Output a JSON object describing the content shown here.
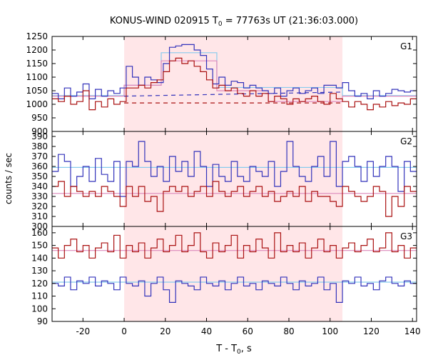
{
  "chart_data": {
    "type": "line",
    "title_main": "KONUS-WIND 020915 T",
    "title_sub": "0",
    "title_rest": " = 77763s UT (21:36:03.000)",
    "xlabel_main": "T - T",
    "xlabel_sub": "0",
    "xlabel_rest": ", s",
    "ylabel": "counts / sec",
    "xlim": [
      -35,
      142
    ],
    "xticks": [
      -20,
      0,
      20,
      40,
      60,
      80,
      100,
      120,
      140
    ],
    "shaded_interval": [
      0,
      106
    ],
    "colors": {
      "blue": "#3333bb",
      "red": "#aa1111",
      "light_blue": "#88ccee",
      "pink": "#dd88bb",
      "shade": "#ffe6e8"
    },
    "panels": [
      {
        "label": "G1",
        "ylim": [
          900,
          1250
        ],
        "yticks": [
          900,
          950,
          1000,
          1050,
          1100,
          1150,
          1200,
          1250
        ],
        "x_edges": [
          -35,
          -32,
          -29,
          -26,
          -23,
          -20,
          -17,
          -14,
          -11,
          -8,
          -5,
          -2,
          1,
          4,
          7,
          10,
          13,
          16,
          19,
          22,
          25,
          28,
          31,
          34,
          37,
          40,
          43,
          46,
          49,
          52,
          55,
          58,
          61,
          64,
          67,
          70,
          73,
          76,
          79,
          82,
          85,
          88,
          91,
          94,
          97,
          100,
          103,
          106,
          109,
          112,
          115,
          118,
          121,
          124,
          127,
          130,
          133,
          136,
          139,
          142
        ],
        "series": [
          {
            "color": "blue",
            "values": [
              1040,
              1020,
              1060,
              1030,
              1045,
              1075,
              1020,
              1055,
              1030,
              1050,
              1040,
              1060,
              1140,
              1100,
              1070,
              1100,
              1090,
              1080,
              1150,
              1210,
              1215,
              1220,
              1220,
              1200,
              1180,
              1130,
              1075,
              1100,
              1070,
              1085,
              1080,
              1060,
              1070,
              1060,
              1050,
              1040,
              1060,
              1030,
              1050,
              1060,
              1040,
              1050,
              1060,
              1040,
              1070,
              1070,
              1060,
              1080,
              1050,
              1030,
              1040,
              1020,
              1050,
              1030,
              1040,
              1055,
              1050,
              1045,
              1050
            ]
          },
          {
            "color": "red",
            "values": [
              1020,
              1010,
              1030,
              1000,
              1010,
              1050,
              980,
              1010,
              990,
              1020,
              1000,
              1010,
              1060,
              1060,
              1070,
              1060,
              1080,
              1090,
              1120,
              1160,
              1170,
              1150,
              1160,
              1140,
              1120,
              1090,
              1060,
              1070,
              1050,
              1060,
              1040,
              1030,
              1050,
              1030,
              1040,
              1010,
              1030,
              1020,
              1000,
              1020,
              1010,
              1020,
              1030,
              1010,
              1000,
              1040,
              1020,
              1010,
              990,
              1010,
              1000,
              980,
              1000,
              990,
              1010,
              995,
              1005,
              1000,
              1020
            ]
          }
        ],
        "step_fits": [
          {
            "color": "light_blue",
            "points": [
              [
                -35,
                1032
              ],
              [
                0,
                1032
              ],
              [
                0,
                1070
              ],
              [
                18,
                1070
              ],
              [
                18,
                1190
              ],
              [
                45,
                1190
              ],
              [
                45,
                1062
              ],
              [
                106,
                1062
              ],
              [
                106,
                1032
              ],
              [
                142,
                1032
              ]
            ]
          },
          {
            "color": "pink",
            "points": [
              [
                -35,
                1030
              ],
              [
                0,
                1030
              ],
              [
                0,
                1070
              ],
              [
                18,
                1070
              ],
              [
                18,
                1160
              ],
              [
                45,
                1160
              ],
              [
                45,
                1050
              ],
              [
                70,
                1050
              ],
              [
                70,
                1010
              ],
              [
                106,
                1010
              ],
              [
                106,
                1030
              ],
              [
                142,
                1030
              ]
            ]
          }
        ],
        "dashed_lines": [
          {
            "color": "blue",
            "points": [
              [
                0,
                1030
              ],
              [
                106,
                1045
              ]
            ]
          },
          {
            "color": "red",
            "points": [
              [
                0,
                1005
              ],
              [
                106,
                1005
              ]
            ]
          }
        ]
      },
      {
        "label": "G2",
        "ylim": [
          300,
          395
        ],
        "yticks": [
          300,
          310,
          320,
          330,
          340,
          350,
          360,
          370,
          380,
          390
        ],
        "x_edges": [
          -35,
          -32,
          -29,
          -26,
          -23,
          -20,
          -17,
          -14,
          -11,
          -8,
          -5,
          -2,
          1,
          4,
          7,
          10,
          13,
          16,
          19,
          22,
          25,
          28,
          31,
          34,
          37,
          40,
          43,
          46,
          49,
          52,
          55,
          58,
          61,
          64,
          67,
          70,
          73,
          76,
          79,
          82,
          85,
          88,
          91,
          94,
          97,
          100,
          103,
          106,
          109,
          112,
          115,
          118,
          121,
          124,
          127,
          130,
          133,
          136,
          139,
          142
        ],
        "series": [
          {
            "color": "blue",
            "values": [
              355,
              372,
              365,
              340,
              350,
              360,
              345,
              368,
              352,
              345,
              365,
              330,
              365,
              360,
              385,
              365,
              350,
              360,
              345,
              370,
              355,
              365,
              350,
              375,
              360,
              340,
              362,
              350,
              345,
              365,
              350,
              345,
              360,
              355,
              350,
              365,
              340,
              355,
              385,
              360,
              350,
              345,
              360,
              370,
              350,
              385,
              340,
              365,
              370,
              360,
              345,
              365,
              350,
              360,
              370,
              360,
              335,
              365,
              355
            ]
          },
          {
            "color": "red",
            "values": [
              340,
              345,
              330,
              340,
              335,
              330,
              335,
              330,
              340,
              335,
              330,
              320,
              340,
              330,
              340,
              325,
              330,
              315,
              335,
              340,
              335,
              340,
              330,
              335,
              340,
              330,
              345,
              335,
              330,
              335,
              340,
              330,
              335,
              340,
              330,
              335,
              325,
              330,
              335,
              330,
              340,
              325,
              335,
              330,
              330,
              325,
              320,
              340,
              335,
              330,
              325,
              330,
              340,
              335,
              310,
              330,
              320,
              340,
              335
            ]
          }
        ],
        "step_fits": [
          {
            "color": "light_blue",
            "points": [
              [
                -35,
                359
              ],
              [
                142,
                359
              ]
            ]
          },
          {
            "color": "pink",
            "points": [
              [
                -35,
                333
              ],
              [
                142,
                333
              ]
            ]
          }
        ],
        "dashed_lines": []
      },
      {
        "label": "G3",
        "ylim": [
          90,
          165
        ],
        "yticks": [
          90,
          100,
          110,
          120,
          130,
          140,
          150,
          160
        ],
        "x_edges": [
          -35,
          -32,
          -29,
          -26,
          -23,
          -20,
          -17,
          -14,
          -11,
          -8,
          -5,
          -2,
          1,
          4,
          7,
          10,
          13,
          16,
          19,
          22,
          25,
          28,
          31,
          34,
          37,
          40,
          43,
          46,
          49,
          52,
          55,
          58,
          61,
          64,
          67,
          70,
          73,
          76,
          79,
          82,
          85,
          88,
          91,
          94,
          97,
          100,
          103,
          106,
          109,
          112,
          115,
          118,
          121,
          124,
          127,
          130,
          133,
          136,
          139,
          142
        ],
        "series": [
          {
            "color": "red",
            "values": [
              148,
              140,
              150,
              155,
              145,
              150,
              140,
              148,
              152,
              145,
              158,
              140,
              150,
              145,
              152,
              140,
              148,
              155,
              145,
              150,
              158,
              145,
              150,
              160,
              145,
              140,
              152,
              145,
              150,
              158,
              140,
              150,
              145,
              155,
              148,
              140,
              160,
              145,
              150,
              145,
              152,
              140,
              148,
              155,
              145,
              150,
              140,
              148,
              152,
              145,
              150,
              155,
              145,
              148,
              160,
              145,
              150,
              140,
              148
            ]
          },
          {
            "color": "blue",
            "values": [
              120,
              118,
              125,
              115,
              122,
              120,
              125,
              118,
              122,
              120,
              115,
              125,
              120,
              118,
              122,
              110,
              120,
              125,
              115,
              105,
              122,
              120,
              118,
              115,
              125,
              120,
              118,
              122,
              115,
              120,
              125,
              118,
              120,
              115,
              122,
              120,
              118,
              125,
              120,
              115,
              122,
              118,
              120,
              125,
              115,
              120,
              105,
              122,
              120,
              125,
              118,
              120,
              115,
              122,
              125,
              120,
              118,
              122,
              120
            ]
          }
        ],
        "step_fits": [
          {
            "color": "light_blue",
            "points": [
              [
                -35,
                121
              ],
              [
                142,
                121
              ]
            ]
          },
          {
            "color": "pink",
            "points": [
              [
                -35,
                146
              ],
              [
                142,
                146
              ]
            ]
          }
        ],
        "dashed_lines": []
      }
    ]
  }
}
